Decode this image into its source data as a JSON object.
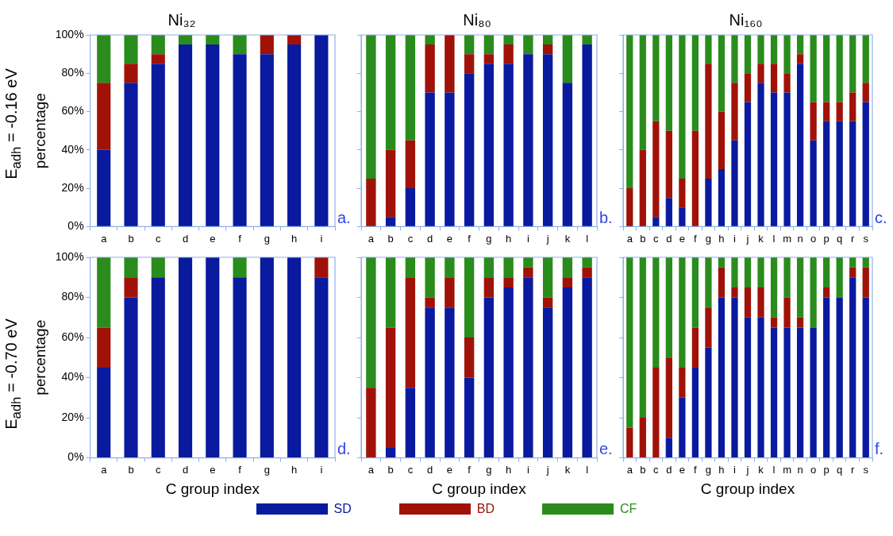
{
  "chart_data": [
    {
      "type": "bar",
      "stacked": true,
      "title": "Ni₃₂",
      "ylabel": "percentage",
      "categories": [
        "a",
        "b",
        "c",
        "d",
        "e",
        "f",
        "g",
        "h",
        "i"
      ],
      "ylim": [
        0,
        100
      ],
      "yticks": [
        {
          "value": 0,
          "label": "0%"
        },
        {
          "value": 20,
          "label": "20%"
        },
        {
          "value": 40,
          "label": "40%"
        },
        {
          "value": 60,
          "label": "60%"
        },
        {
          "value": 80,
          "label": "80%"
        },
        {
          "value": 100,
          "label": "100%"
        }
      ],
      "annotations": [
        "E$_{adh}$ = -0.16 eV",
        "a."
      ],
      "series": [
        {
          "color": "#0a1a9e",
          "values": [
            40,
            75,
            85,
            95,
            95,
            90,
            90,
            95,
            100
          ]
        },
        {
          "color": "#a01208",
          "values": [
            35,
            10,
            5,
            0,
            0,
            0,
            10,
            5,
            0
          ]
        },
        {
          "color": "#2a8c1c",
          "values": [
            25,
            15,
            10,
            5,
            5,
            10,
            0,
            0,
            0
          ]
        }
      ]
    },
    {
      "type": "bar",
      "stacked": true,
      "title": "Ni₈₀",
      "tick_labels": "x",
      "categories": [
        "a",
        "b",
        "c",
        "d",
        "e",
        "f",
        "g",
        "h",
        "i",
        "j",
        "k",
        "l"
      ],
      "ylim": [
        0,
        100
      ],
      "yticks": [
        {
          "value": 0,
          "label": null
        },
        {
          "value": 20,
          "label": null
        },
        {
          "value": 40,
          "label": null
        },
        {
          "value": 60,
          "label": null
        },
        {
          "value": 80,
          "label": null
        },
        {
          "value": 100,
          "label": null
        }
      ],
      "annotations": [
        "b."
      ],
      "series": [
        {
          "color": "#0a1a9e",
          "values": [
            0,
            5,
            20,
            70,
            70,
            80,
            85,
            85,
            90,
            90,
            75,
            95
          ]
        },
        {
          "color": "#a01208",
          "values": [
            25,
            35,
            25,
            25,
            30,
            10,
            5,
            10,
            0,
            5,
            0,
            0
          ]
        },
        {
          "color": "#2a8c1c",
          "values": [
            75,
            60,
            55,
            5,
            0,
            10,
            10,
            5,
            10,
            5,
            25,
            5
          ]
        }
      ]
    },
    {
      "type": "bar",
      "stacked": true,
      "title": "Ni₁₆₀",
      "tick_labels": "x",
      "categories": [
        "a",
        "b",
        "c",
        "d",
        "e",
        "f",
        "g",
        "h",
        "i",
        "j",
        "k",
        "l",
        "m",
        "n",
        "o",
        "p",
        "q",
        "r",
        "s"
      ],
      "ylim": [
        0,
        100
      ],
      "yticks": [
        {
          "value": 0,
          "label": null
        },
        {
          "value": 20,
          "label": null
        },
        {
          "value": 40,
          "label": null
        },
        {
          "value": 60,
          "label": null
        },
        {
          "value": 80,
          "label": null
        },
        {
          "value": 100,
          "label": null
        }
      ],
      "annotations": [
        "c."
      ],
      "series": [
        {
          "color": "#0a1a9e",
          "values": [
            0,
            0,
            5,
            15,
            10,
            0,
            25,
            30,
            45,
            65,
            75,
            70,
            70,
            85,
            45,
            55,
            55,
            55,
            65
          ]
        },
        {
          "color": "#a01208",
          "values": [
            20,
            40,
            50,
            35,
            15,
            50,
            60,
            30,
            30,
            15,
            10,
            15,
            10,
            5,
            20,
            10,
            10,
            15,
            10
          ]
        },
        {
          "color": "#2a8c1c",
          "values": [
            80,
            60,
            45,
            50,
            75,
            50,
            15,
            40,
            25,
            20,
            15,
            15,
            20,
            10,
            35,
            35,
            35,
            30,
            25
          ]
        }
      ]
    },
    {
      "type": "bar",
      "stacked": true,
      "xlabel": "C group index",
      "ylabel": "percentage",
      "categories": [
        "a",
        "b",
        "c",
        "d",
        "e",
        "f",
        "g",
        "h",
        "i"
      ],
      "ylim": [
        0,
        100
      ],
      "yticks": [
        {
          "value": 0,
          "label": "0%"
        },
        {
          "value": 20,
          "label": "20%"
        },
        {
          "value": 40,
          "label": "40%"
        },
        {
          "value": 60,
          "label": "60%"
        },
        {
          "value": 80,
          "label": "80%"
        },
        {
          "value": 100,
          "label": "100%"
        }
      ],
      "annotations": [
        "E$_{adh}$ = -0.70 eV",
        "d."
      ],
      "series": [
        {
          "color": "#0a1a9e",
          "values": [
            45,
            80,
            90,
            100,
            100,
            90,
            100,
            100,
            90
          ]
        },
        {
          "color": "#a01208",
          "values": [
            20,
            10,
            0,
            0,
            0,
            0,
            0,
            0,
            10
          ]
        },
        {
          "color": "#2a8c1c",
          "values": [
            35,
            10,
            10,
            0,
            0,
            10,
            0,
            0,
            0
          ]
        }
      ]
    },
    {
      "type": "bar",
      "stacked": true,
      "xlabel": "C group index",
      "tick_labels": "x",
      "categories": [
        "a",
        "b",
        "c",
        "d",
        "e",
        "f",
        "g",
        "h",
        "i",
        "j",
        "k",
        "l"
      ],
      "ylim": [
        0,
        100
      ],
      "yticks": [
        {
          "value": 0,
          "label": null
        },
        {
          "value": 20,
          "label": null
        },
        {
          "value": 40,
          "label": null
        },
        {
          "value": 60,
          "label": null
        },
        {
          "value": 80,
          "label": null
        },
        {
          "value": 100,
          "label": null
        }
      ],
      "annotations": [
        "e."
      ],
      "series": [
        {
          "color": "#0a1a9e",
          "values": [
            0,
            5,
            35,
            75,
            75,
            40,
            80,
            85,
            90,
            75,
            85,
            90
          ]
        },
        {
          "color": "#a01208",
          "values": [
            35,
            60,
            55,
            5,
            15,
            20,
            10,
            5,
            5,
            5,
            5,
            5
          ]
        },
        {
          "color": "#2a8c1c",
          "values": [
            65,
            35,
            10,
            20,
            10,
            40,
            10,
            10,
            5,
            20,
            10,
            5
          ]
        }
      ]
    },
    {
      "type": "bar",
      "stacked": true,
      "xlabel": "C group index",
      "tick_labels": "x",
      "legend": "bottom",
      "categories": [
        "a",
        "b",
        "c",
        "d",
        "e",
        "f",
        "g",
        "h",
        "i",
        "j",
        "k",
        "l",
        "m",
        "n",
        "o",
        "p",
        "q",
        "r",
        "s"
      ],
      "ylim": [
        0,
        100
      ],
      "yticks": [
        {
          "value": 0,
          "label": null
        },
        {
          "value": 20,
          "label": null
        },
        {
          "value": 40,
          "label": null
        },
        {
          "value": 60,
          "label": null
        },
        {
          "value": 80,
          "label": null
        },
        {
          "value": 100,
          "label": null
        }
      ],
      "annotations": [
        "f."
      ],
      "series": [
        {
          "name": "SD",
          "color": "#0a1a9e",
          "values": [
            0,
            0,
            0,
            10,
            30,
            45,
            55,
            80,
            80,
            70,
            70,
            65,
            65,
            65,
            65,
            80,
            80,
            90,
            80
          ]
        },
        {
          "name": "BD",
          "color": "#a01208",
          "values": [
            15,
            20,
            45,
            40,
            15,
            20,
            20,
            15,
            5,
            15,
            15,
            5,
            15,
            5,
            0,
            5,
            0,
            5,
            15
          ]
        },
        {
          "name": "CF",
          "color": "#2a8c1c",
          "values": [
            85,
            80,
            55,
            50,
            55,
            35,
            25,
            5,
            15,
            15,
            15,
            30,
            20,
            30,
            35,
            15,
            20,
            5,
            5
          ]
        }
      ]
    }
  ]
}
